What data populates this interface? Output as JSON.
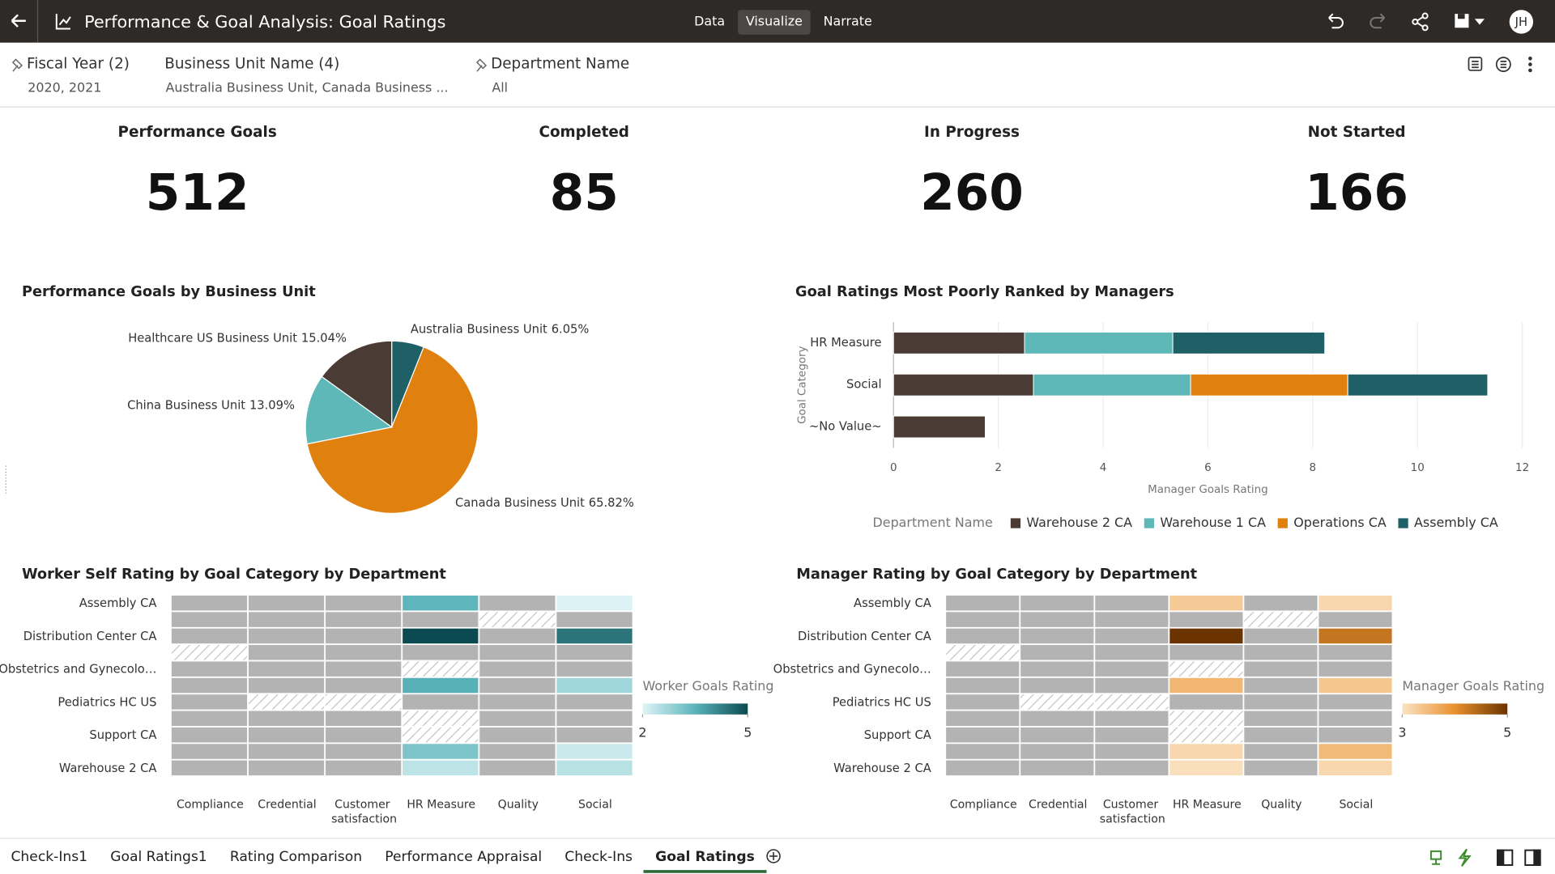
{
  "header": {
    "title": "Performance & Goal Analysis: Goal Ratings",
    "tabs": [
      "Data",
      "Visualize",
      "Narrate"
    ],
    "active_tab": 1,
    "avatar": "JH"
  },
  "filters": [
    {
      "label": "Fiscal Year (2)",
      "value": "2020, 2021",
      "pinned": true
    },
    {
      "label": "Business Unit Name (4)",
      "value": "Australia Business Unit, Canada Business ...",
      "pinned": false
    },
    {
      "label": "Department Name",
      "value": "All",
      "pinned": true
    }
  ],
  "kpis": [
    {
      "label": "Performance Goals",
      "value": 512
    },
    {
      "label": "Completed",
      "value": 85
    },
    {
      "label": "In Progress",
      "value": 260
    },
    {
      "label": "Not Started",
      "value": 166
    }
  ],
  "chart_data": [
    {
      "type": "pie",
      "title": "Performance Goals by Business Unit",
      "categories": [
        "Australia Business Unit",
        "Canada Business Unit",
        "China Business Unit",
        "Healthcare US Business Unit"
      ],
      "values": [
        6.05,
        65.82,
        13.09,
        15.04
      ],
      "value_labels": [
        "6.05%",
        "65.82%",
        "13.09%",
        "15.04%"
      ],
      "colors": [
        "#1f5f66",
        "#e0800e",
        "#5fb8b8",
        "#4a3c35"
      ]
    },
    {
      "type": "bar",
      "orientation": "horizontal",
      "stacked": true,
      "title": "Goal Ratings Most Poorly Ranked by Managers",
      "categories": [
        "HR Measure",
        "Social",
        "~No Value~"
      ],
      "series": [
        {
          "name": "Warehouse 2 CA",
          "color": "#4a3c35",
          "values": [
            2.5,
            2.67,
            1.75
          ]
        },
        {
          "name": "Warehouse 1 CA",
          "color": "#5fb8b8",
          "values": [
            2.83,
            3,
            null
          ]
        },
        {
          "name": "Operations CA",
          "color": "#e0800e",
          "values": [
            null,
            3,
            null
          ]
        },
        {
          "name": "Assembly CA",
          "color": "#1f5f66",
          "values": [
            2.9,
            2.67,
            null
          ]
        }
      ],
      "xlim": [
        0,
        12
      ],
      "xticks": [
        0,
        2,
        4,
        6,
        8,
        10,
        12
      ],
      "grid": true,
      "xlabel": "Manager Goals Rating",
      "ylabel": "Goal Category",
      "legend": "bottom",
      "legend_title": "Department Name"
    },
    {
      "type": "heatmap",
      "title": "Worker Self Rating by Goal Category by Department",
      "columns": [
        "Compliance",
        "Credential",
        "Customer satisfaction",
        "HR Measure",
        "Quality",
        "Social"
      ],
      "rows": [
        "Assembly CA",
        null,
        "Distribution Center CA",
        null,
        "Obstetrics and Gynecolo…",
        null,
        "Pediatrics HC US",
        null,
        "Support CA",
        null,
        "Warehouse 2 CA"
      ],
      "values": [
        [
          null,
          null,
          null,
          3.45,
          null,
          2.05
        ],
        [
          null,
          null,
          null,
          null,
          null,
          null
        ],
        [
          null,
          null,
          null,
          5,
          null,
          4.4
        ],
        [
          null,
          null,
          null,
          null,
          null,
          null
        ],
        [
          null,
          null,
          null,
          null,
          null,
          null
        ],
        [
          null,
          null,
          null,
          3.55,
          null,
          2.7
        ],
        [
          null,
          null,
          null,
          null,
          null,
          null
        ],
        [
          null,
          null,
          null,
          null,
          null,
          null
        ],
        [
          null,
          null,
          null,
          null,
          null,
          null
        ],
        [
          null,
          null,
          null,
          3.1,
          null,
          2.25
        ],
        [
          null,
          null,
          null,
          2.4,
          null,
          2.45
        ]
      ],
      "hatched": [
        [
          false,
          false,
          false,
          false,
          false,
          false
        ],
        [
          false,
          false,
          false,
          false,
          true,
          false
        ],
        [
          false,
          false,
          false,
          false,
          false,
          false
        ],
        [
          true,
          false,
          false,
          false,
          false,
          false
        ],
        [
          false,
          false,
          false,
          true,
          false,
          false
        ],
        [
          false,
          false,
          false,
          false,
          false,
          false
        ],
        [
          false,
          true,
          true,
          false,
          false,
          false
        ],
        [
          false,
          false,
          false,
          true,
          false,
          false
        ],
        [
          false,
          false,
          false,
          true,
          false,
          false
        ],
        [
          false,
          false,
          false,
          false,
          false,
          false
        ],
        [
          false,
          false,
          false,
          false,
          false,
          false
        ]
      ],
      "empty_color": "#b3b3b3",
      "legend_title": "Worker Goals Rating",
      "clim": [
        2,
        5
      ],
      "legend_ticks": [
        2,
        5
      ],
      "color_range": [
        "#e0f4f6",
        "#5ab4ba",
        "#0b4a50"
      ]
    },
    {
      "type": "heatmap",
      "title": "Manager Rating by Goal Category by Department",
      "columns": [
        "Compliance",
        "Credential",
        "Customer satisfaction",
        "HR Measure",
        "Quality",
        "Social"
      ],
      "rows": [
        "Assembly CA",
        null,
        "Distribution Center CA",
        null,
        "Obstetrics and Gynecolo…",
        null,
        "Pediatrics HC US",
        null,
        "Support CA",
        null,
        "Warehouse 2 CA"
      ],
      "values": [
        [
          null,
          null,
          null,
          3.3,
          null,
          3.15
        ],
        [
          null,
          null,
          null,
          null,
          null,
          null
        ],
        [
          null,
          null,
          null,
          5,
          null,
          4.3
        ],
        [
          null,
          null,
          null,
          null,
          null,
          null
        ],
        [
          null,
          null,
          null,
          null,
          null,
          null
        ],
        [
          null,
          null,
          null,
          3.55,
          null,
          3.35
        ],
        [
          null,
          null,
          null,
          null,
          null,
          null
        ],
        [
          null,
          null,
          null,
          null,
          null,
          null
        ],
        [
          null,
          null,
          null,
          null,
          null,
          null
        ],
        [
          null,
          null,
          null,
          3.15,
          null,
          3.5
        ],
        [
          null,
          null,
          null,
          3.05,
          null,
          3.15
        ]
      ],
      "hatched": [
        [
          false,
          false,
          false,
          false,
          false,
          false
        ],
        [
          false,
          false,
          false,
          false,
          true,
          false
        ],
        [
          false,
          false,
          false,
          false,
          false,
          false
        ],
        [
          true,
          false,
          false,
          false,
          false,
          false
        ],
        [
          false,
          false,
          false,
          true,
          false,
          false
        ],
        [
          false,
          false,
          false,
          false,
          false,
          false
        ],
        [
          false,
          true,
          true,
          false,
          false,
          false
        ],
        [
          false,
          false,
          false,
          true,
          false,
          false
        ],
        [
          false,
          false,
          false,
          true,
          false,
          false
        ],
        [
          false,
          false,
          false,
          false,
          false,
          false
        ],
        [
          false,
          false,
          false,
          false,
          false,
          false
        ]
      ],
      "empty_color": "#b3b3b3",
      "legend_title": "Manager Goals Rating",
      "clim": [
        3,
        5
      ],
      "legend_ticks": [
        3,
        5
      ],
      "color_range": [
        "#fbe3c4",
        "#e8912e",
        "#6b3300"
      ]
    }
  ],
  "sheet_tabs": {
    "items": [
      "Check-Ins1",
      "Goal Ratings1",
      "Rating Comparison",
      "Performance Appraisal",
      "Check-Ins",
      "Goal Ratings"
    ],
    "active": 5
  }
}
